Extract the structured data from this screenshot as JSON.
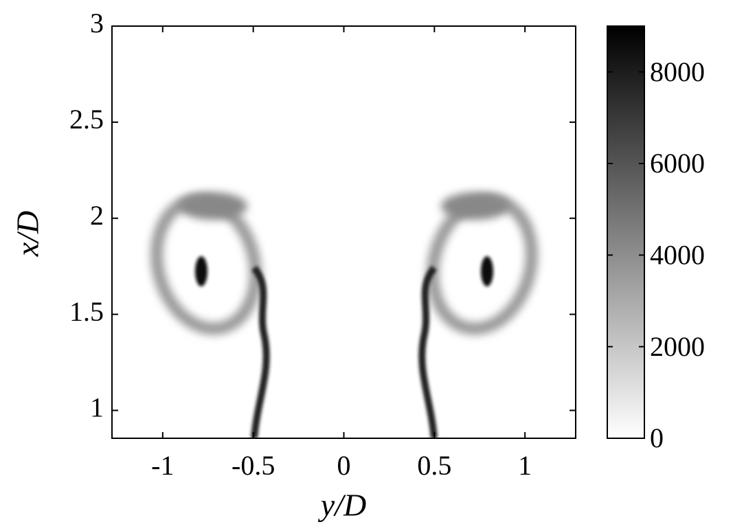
{
  "chart_data": {
    "type": "heatmap",
    "xlabel": "y/D",
    "ylabel": "x/D",
    "xlim": [
      -1.28,
      1.28
    ],
    "xticks": [
      -1,
      -0.5,
      0,
      0.5,
      1
    ],
    "ylim": [
      0.855,
      3
    ],
    "yticks": [
      1,
      1.5,
      2,
      2.5,
      3
    ],
    "colorbar": {
      "clim": [
        0,
        9000
      ],
      "ticks": [
        0,
        2000,
        4000,
        6000,
        8000
      ],
      "colors": [
        "#ffffff",
        "#000000"
      ]
    }
  }
}
